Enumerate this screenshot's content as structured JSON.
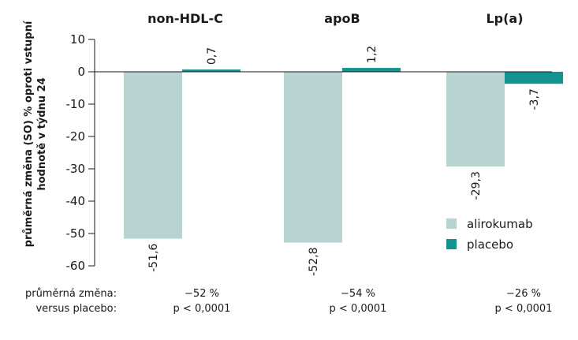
{
  "chart_data": {
    "type": "bar",
    "categories": [
      "non-HDL-C",
      "apoB",
      "Lp(a)"
    ],
    "series": [
      {
        "name": "alirokumab",
        "values": [
          -51.6,
          -52.8,
          -29.3
        ],
        "labels": [
          "-51,6",
          "-52,8",
          "-29,3"
        ],
        "color": "#b7d3d2"
      },
      {
        "name": "placebo",
        "values": [
          0.7,
          1.2,
          -3.7
        ],
        "labels": [
          "0,7",
          "1,2",
          "-3,7"
        ],
        "color": "#11948f"
      }
    ],
    "ylabel": "průměrná změna (SO) % oproti vstupní hodnotě v týdnu 24",
    "ylim": [
      -60,
      10
    ],
    "yticks": [
      "10",
      "0",
      "-10",
      "-20",
      "-30",
      "-40",
      "-50",
      "-60"
    ],
    "grid": false,
    "legend_position": "right",
    "colors": {
      "axis": "#1a1a1a",
      "baseline": "#1a1a1a",
      "text": "#1a1a1a"
    }
  },
  "footer": {
    "row1_label": "průměrná změna:",
    "row2_label": "versus placebo:",
    "diffs": [
      "−52 %",
      "−54 %",
      "−26 %"
    ],
    "pvalues": [
      "p < 0,0001",
      "p < 0,0001",
      "p < 0,0001"
    ]
  }
}
